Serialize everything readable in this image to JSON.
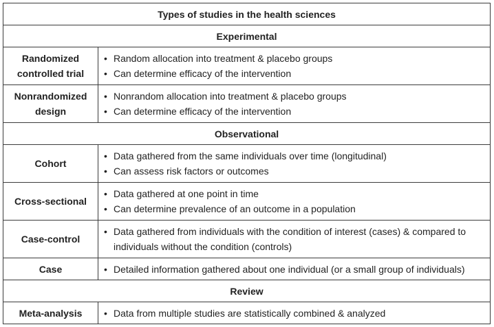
{
  "title": "Types of studies in the health sciences",
  "sections": [
    {
      "name": "Experimental",
      "rows": [
        {
          "type": "Randomized controlled trial",
          "points": [
            "Random allocation into treatment & placebo groups",
            "Can determine efficacy of the intervention"
          ]
        },
        {
          "type": "Nonrandomized design",
          "points": [
            "Nonrandom allocation into treatment & placebo groups",
            "Can determine efficacy of the intervention"
          ]
        }
      ]
    },
    {
      "name": "Observational",
      "rows": [
        {
          "type": "Cohort",
          "points": [
            "Data gathered from the same individuals over time (longitudinal)",
            "Can assess risk factors or outcomes"
          ]
        },
        {
          "type": "Cross-sectional",
          "points": [
            "Data gathered at one point in time",
            "Can determine prevalence of an outcome in a population"
          ]
        },
        {
          "type": "Case-control",
          "points": [
            "Data gathered from individuals with the condition of interest (cases) & compared to individuals without the condition (controls)"
          ]
        },
        {
          "type": "Case",
          "points": [
            "Detailed information gathered about one individual (or a small group of individuals)"
          ]
        }
      ]
    },
    {
      "name": "Review",
      "rows": [
        {
          "type": "Meta-analysis",
          "points": [
            "Data from multiple studies are statistically combined & analyzed"
          ]
        }
      ]
    }
  ]
}
